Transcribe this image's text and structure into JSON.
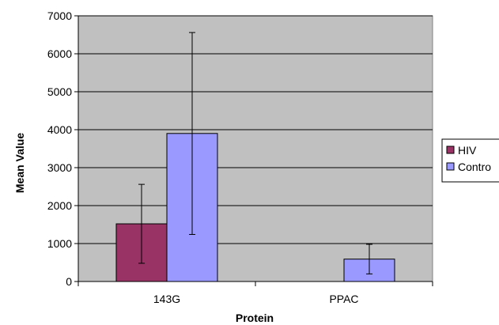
{
  "chart_data": {
    "type": "bar",
    "title": "",
    "xlabel": "Protein",
    "ylabel": "Mean Value",
    "categories": [
      "143G",
      "PPAC"
    ],
    "series": [
      {
        "name": "HIV",
        "values": [
          1520,
          0
        ],
        "error": [
          1040,
          0
        ]
      },
      {
        "name": "Contro",
        "values": [
          3900,
          590
        ],
        "error": [
          2660,
          390
        ]
      }
    ],
    "ylim": [
      0,
      7000
    ],
    "yticks": [
      0,
      1000,
      2000,
      3000,
      4000,
      5000,
      6000,
      7000
    ],
    "grid": true,
    "legend_position": "right",
    "colors": {
      "plot_background": "#c0c0c0",
      "series": [
        "#993366",
        "#9999ff"
      ]
    }
  }
}
